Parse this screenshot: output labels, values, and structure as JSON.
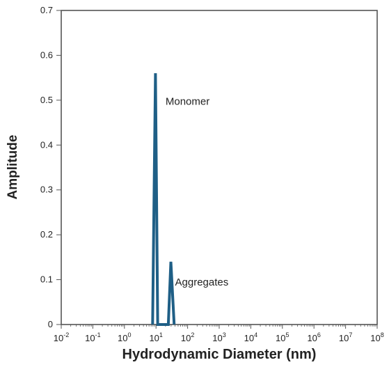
{
  "chart_data": {
    "type": "line",
    "xlabel": "Hydrodynamic Diameter (nm)",
    "ylabel": "Amplitude",
    "xscale": "log",
    "xlim": [
      0.01,
      100000000
    ],
    "ylim": [
      0,
      0.7
    ],
    "grid": false,
    "legend": "none",
    "x_ticks": [
      {
        "value": 0.01,
        "base": "10",
        "exp": "-2"
      },
      {
        "value": 0.1,
        "base": "10",
        "exp": "-1"
      },
      {
        "value": 1,
        "base": "10",
        "exp": "0"
      },
      {
        "value": 10,
        "base": "10",
        "exp": "1"
      },
      {
        "value": 100,
        "base": "10",
        "exp": "2"
      },
      {
        "value": 1000,
        "base": "10",
        "exp": "3"
      },
      {
        "value": 10000,
        "base": "10",
        "exp": "4"
      },
      {
        "value": 100000,
        "base": "10",
        "exp": "5"
      },
      {
        "value": 1000000,
        "base": "10",
        "exp": "6"
      },
      {
        "value": 10000000,
        "base": "10",
        "exp": "7"
      },
      {
        "value": 100000000,
        "base": "10",
        "exp": "8"
      }
    ],
    "y_ticks": [
      {
        "value": 0,
        "label": "0"
      },
      {
        "value": 0.1,
        "label": "0.1"
      },
      {
        "value": 0.2,
        "label": "0.2"
      },
      {
        "value": 0.3,
        "label": "0.3"
      },
      {
        "value": 0.4,
        "label": "0.4"
      },
      {
        "value": 0.5,
        "label": "0.5"
      },
      {
        "value": 0.6,
        "label": "0.6"
      },
      {
        "value": 0.7,
        "label": "0.7"
      }
    ],
    "series": [
      {
        "color": "#1f5f86",
        "points": [
          [
            7.8,
            0
          ],
          [
            9.6,
            0.56
          ],
          [
            11.3,
            0
          ],
          [
            24.5,
            0
          ],
          [
            29.5,
            0.14
          ],
          [
            37.5,
            0
          ]
        ]
      }
    ],
    "annotations": [
      {
        "text": "Monomer",
        "x": 20,
        "y": 0.49
      },
      {
        "text": "Aggregates",
        "x": 40,
        "y": 0.087
      }
    ]
  }
}
